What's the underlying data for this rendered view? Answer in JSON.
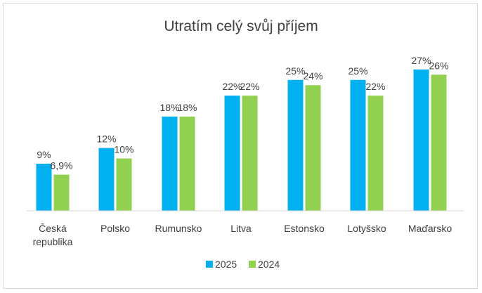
{
  "chart_data": {
    "type": "bar",
    "title": "Utratím celý svůj příjem",
    "categories": [
      [
        "Česká",
        "republika"
      ],
      [
        "Polsko"
      ],
      [
        "Rumunsko"
      ],
      [
        "Litva"
      ],
      [
        "Estonsko"
      ],
      [
        "Lotyšsko"
      ],
      [
        "Maďarsko"
      ]
    ],
    "series": [
      {
        "name": "2025",
        "color": "#00b0f0",
        "values": [
          9,
          12,
          18,
          22,
          25,
          25,
          27
        ],
        "labels": [
          "9%",
          "12%",
          "18%",
          "22%",
          "25%",
          "25%",
          "27%"
        ]
      },
      {
        "name": "2024",
        "color": "#92d050",
        "values": [
          6.9,
          10,
          18,
          22,
          24,
          22,
          26
        ],
        "labels": [
          "6,9%",
          "10%",
          "18%",
          "22%",
          "24%",
          "22%",
          "26%"
        ]
      }
    ],
    "ylim": [
      0,
      30
    ],
    "grid": false,
    "legend_position": "bottom"
  }
}
